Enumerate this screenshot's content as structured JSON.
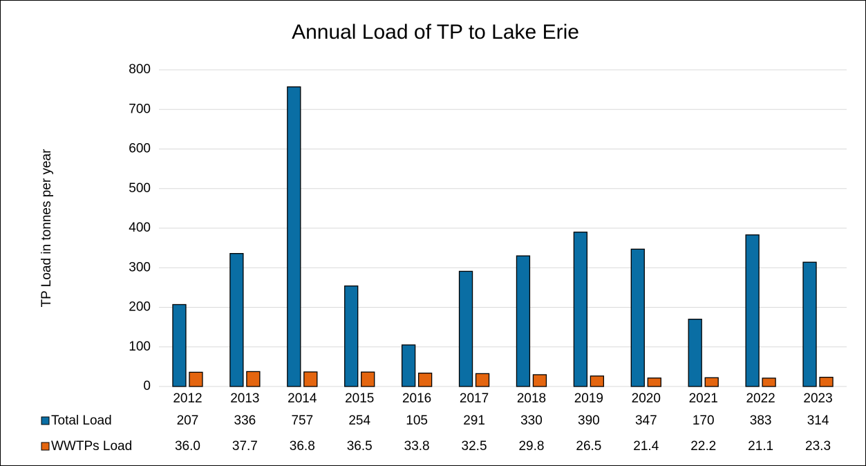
{
  "chart_data": {
    "type": "bar",
    "title": "Annual Load of TP to Lake Erie",
    "y_label": "TP Load in tonnes per year",
    "categories": [
      "2012",
      "2013",
      "2014",
      "2015",
      "2016",
      "2017",
      "2018",
      "2019",
      "2020",
      "2021",
      "2022",
      "2023"
    ],
    "series": [
      {
        "name": "Total Load",
        "color": "#0a6ea4",
        "values": [
          207,
          336,
          757,
          254,
          105,
          291,
          330,
          390,
          347,
          170,
          383,
          314
        ]
      },
      {
        "name": "WWTPs Load",
        "color": "#e4650f",
        "values": [
          36.0,
          37.7,
          36.8,
          36.5,
          33.8,
          32.5,
          29.8,
          26.5,
          21.4,
          22.2,
          21.1,
          23.3
        ],
        "value_labels": [
          "36.0",
          "37.7",
          "36.8",
          "36.5",
          "33.8",
          "32.5",
          "29.8",
          "26.5",
          "21.4",
          "22.2",
          "21.1",
          "23.3"
        ]
      }
    ],
    "ylim": [
      0,
      800
    ],
    "yticks": [
      0,
      100,
      200,
      300,
      400,
      500,
      600,
      700,
      800
    ],
    "grid": true,
    "data_table": true
  }
}
